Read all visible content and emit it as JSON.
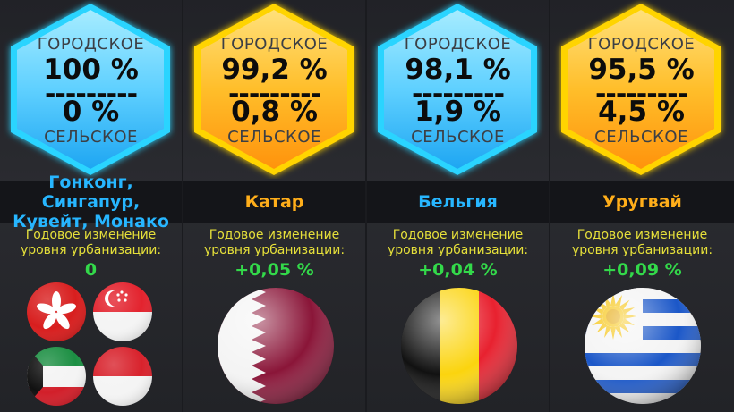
{
  "cards": [
    {
      "theme": "blue",
      "urban_label": "ГОРОДСКОЕ",
      "urban_pct": "100 %",
      "divider": "---------",
      "rural_pct": "0 %",
      "rural_label": "СЕЛЬСКОЕ",
      "country_line1": "Гонконг, Сингапур,",
      "country_line2": "Кувейт, Монако",
      "change_label_line1": "Годовое изменение",
      "change_label_line2": "уровня урбанизации:",
      "change_value": "0",
      "flags": [
        "hong-kong-flag",
        "singapore-flag",
        "kuwait-flag",
        "monaco-flag"
      ]
    },
    {
      "theme": "orange",
      "urban_label": "ГОРОДСКОЕ",
      "urban_pct": "99,2 %",
      "divider": "---------",
      "rural_pct": "0,8 %",
      "rural_label": "СЕЛЬСКОЕ",
      "country_line1": "Катар",
      "country_line2": "",
      "change_label_line1": "Годовое изменение",
      "change_label_line2": "уровня урбанизации:",
      "change_value": "+0,05 %",
      "flags": [
        "qatar-flag"
      ]
    },
    {
      "theme": "blue",
      "urban_label": "ГОРОДСКОЕ",
      "urban_pct": "98,1 %",
      "divider": "---------",
      "rural_pct": "1,9 %",
      "rural_label": "СЕЛЬСКОЕ",
      "country_line1": "Бельгия",
      "country_line2": "",
      "change_label_line1": "Годовое изменение",
      "change_label_line2": "уровня урбанизации:",
      "change_value": "+0,04 %",
      "flags": [
        "belgium-flag"
      ]
    },
    {
      "theme": "orange",
      "urban_label": "ГОРОДСКОЕ",
      "urban_pct": "95,5 %",
      "divider": "---------",
      "rural_pct": "4,5 %",
      "rural_label": "СЕЛЬСКОЕ",
      "country_line1": "Уругвай",
      "country_line2": "",
      "change_label_line1": "Годовое изменение",
      "change_label_line2": "уровня урбанизации:",
      "change_value": "+0,09 %",
      "flags": [
        "uruguay-flag"
      ]
    }
  ],
  "colors": {
    "blue_hex_fill_light": "#8fe6ff",
    "blue_hex_fill_dark": "#27b6ff",
    "blue_glow": "#2ad4ff",
    "orange_hex_fill_light": "#ffd24a",
    "orange_hex_fill_dark": "#ff9d10",
    "orange_glow": "#ffd400",
    "change_label": "#e6e03a",
    "change_value": "#33d94a"
  }
}
